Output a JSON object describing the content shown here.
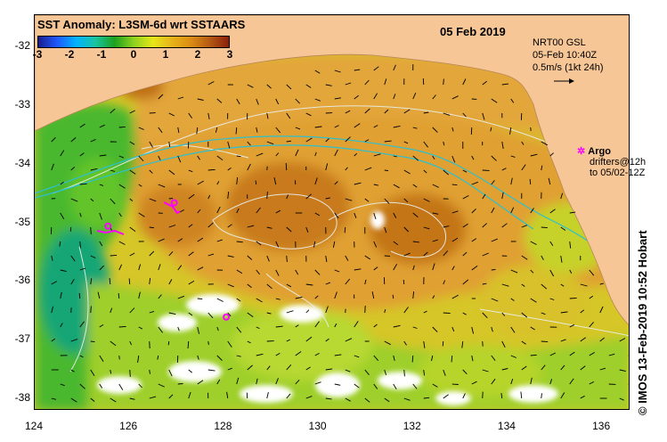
{
  "title": "SST Anomaly: L3SM-6d wrt SSTAARS",
  "date": "05 Feb 2019",
  "current_info": {
    "line1": "NRT00 GSL",
    "line2": "05-Feb 10:40Z",
    "line3": "0.5m/s (1kt 24h)"
  },
  "argo_legend": {
    "label": "Argo",
    "line2": "drifters@12h",
    "line3": "to 05/02-12Z"
  },
  "credit": "© IMOS 13-Feb-2019 10:52 Hobart",
  "colorbar": {
    "ticks": [
      "-3",
      "-2",
      "-1",
      "0",
      "1",
      "2",
      "3"
    ],
    "colors": [
      "#1c1c8c",
      "#1e5aff",
      "#00b4ff",
      "#17c4a0",
      "#1ea01e",
      "#8cd21e",
      "#e6e619",
      "#e6b419",
      "#dc8c14",
      "#b45a14",
      "#8c1e0a"
    ]
  },
  "axes": {
    "x_ticks": [
      "124",
      "126",
      "128",
      "130",
      "132",
      "134",
      "136"
    ],
    "y_ticks": [
      "-32",
      "-33",
      "-34",
      "-35",
      "-36",
      "-37",
      "-38"
    ],
    "lon_range": [
      124,
      136.6
    ],
    "lat_range": [
      -31.45,
      -38.2
    ]
  },
  "colors": {
    "land": "#f7c696",
    "warm": "#e0a030",
    "hot": "#c87a1c",
    "mild": "#d8d22a",
    "green": "#55c02a",
    "cool": "#1cae7a",
    "cloud": "#ffffff",
    "argo": "#ff00ff"
  },
  "argo_points": [
    {
      "lon": 128.05,
      "lat": -36.6
    },
    {
      "lon": 126.95,
      "lat": -34.65
    },
    {
      "lon": 125.55,
      "lat": -35.05
    }
  ]
}
